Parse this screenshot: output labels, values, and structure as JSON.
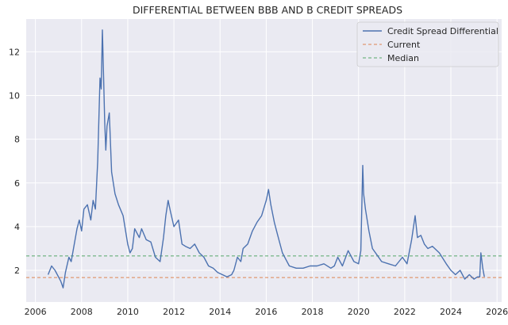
{
  "chart_data": {
    "type": "line",
    "title": "DIFFERENTIAL BETWEEN BBB AND B CREDIT SPREADS",
    "xlabel": "",
    "ylabel": "",
    "xlim": [
      2005.6,
      2026.2
    ],
    "ylim": [
      0.55,
      13.5
    ],
    "grid": true,
    "legend_position": "top-right",
    "x_ticks": [
      2006,
      2008,
      2010,
      2012,
      2014,
      2016,
      2018,
      2020,
      2022,
      2024,
      2026
    ],
    "y_ticks": [
      2,
      4,
      6,
      8,
      10,
      12
    ],
    "colors": {
      "plot_background": "#eaeaf2",
      "grid": "#ffffff",
      "series": "#4c72b0",
      "current": "#dd8452",
      "median": "#55a868"
    },
    "legend": [
      {
        "label": "Credit Spread Differential",
        "style": "solid",
        "color": "#4c72b0"
      },
      {
        "label": "Current",
        "style": "dashed",
        "color": "#dd8452"
      },
      {
        "label": "Median",
        "style": "dashed",
        "color": "#55a868"
      }
    ],
    "series": [
      {
        "name": "Credit Spread Differential",
        "x": [
          2006.55,
          2006.7,
          2006.85,
          2007.0,
          2007.1,
          2007.2,
          2007.3,
          2007.45,
          2007.55,
          2007.65,
          2007.8,
          2007.9,
          2008.0,
          2008.1,
          2008.25,
          2008.4,
          2008.5,
          2008.6,
          2008.7,
          2008.8,
          2008.85,
          2008.9,
          2008.95,
          2009.0,
          2009.05,
          2009.1,
          2009.2,
          2009.3,
          2009.45,
          2009.6,
          2009.8,
          2010.0,
          2010.1,
          2010.2,
          2010.3,
          2010.5,
          2010.6,
          2010.8,
          2011.0,
          2011.2,
          2011.4,
          2011.55,
          2011.65,
          2011.75,
          2011.85,
          2012.0,
          2012.2,
          2012.35,
          2012.5,
          2012.7,
          2012.9,
          2013.1,
          2013.3,
          2013.5,
          2013.7,
          2013.9,
          2014.1,
          2014.3,
          2014.5,
          2014.6,
          2014.75,
          2014.9,
          2015.0,
          2015.2,
          2015.4,
          2015.6,
          2015.8,
          2016.0,
          2016.1,
          2016.2,
          2016.35,
          2016.5,
          2016.7,
          2016.85,
          2017.0,
          2017.3,
          2017.6,
          2017.9,
          2018.2,
          2018.5,
          2018.8,
          2018.95,
          2019.1,
          2019.3,
          2019.55,
          2019.8,
          2020.0,
          2020.1,
          2020.18,
          2020.22,
          2020.3,
          2020.45,
          2020.6,
          2020.8,
          2021.0,
          2021.3,
          2021.6,
          2021.9,
          2022.1,
          2022.3,
          2022.45,
          2022.55,
          2022.7,
          2022.85,
          2023.0,
          2023.2,
          2023.5,
          2023.8,
          2024.0,
          2024.2,
          2024.4,
          2024.6,
          2024.8,
          2025.0,
          2025.15,
          2025.25,
          2025.3,
          2025.38,
          2025.45
        ],
        "values": [
          1.8,
          2.2,
          2.0,
          1.7,
          1.5,
          1.2,
          1.9,
          2.6,
          2.4,
          3.0,
          3.9,
          4.3,
          3.8,
          4.8,
          5.0,
          4.3,
          5.2,
          4.8,
          7.0,
          10.8,
          10.3,
          13.0,
          11.0,
          8.8,
          7.5,
          8.6,
          9.2,
          6.5,
          5.5,
          5.0,
          4.5,
          3.2,
          2.8,
          3.0,
          3.9,
          3.5,
          3.9,
          3.4,
          3.3,
          2.6,
          2.4,
          3.5,
          4.5,
          5.2,
          4.7,
          4.0,
          4.3,
          3.2,
          3.1,
          3.0,
          3.2,
          2.8,
          2.6,
          2.2,
          2.1,
          1.9,
          1.8,
          1.7,
          1.8,
          2.0,
          2.6,
          2.4,
          3.0,
          3.2,
          3.8,
          4.2,
          4.5,
          5.2,
          5.7,
          5.0,
          4.2,
          3.6,
          2.8,
          2.5,
          2.2,
          2.1,
          2.1,
          2.2,
          2.2,
          2.3,
          2.1,
          2.2,
          2.6,
          2.2,
          2.9,
          2.4,
          2.3,
          2.9,
          6.8,
          5.5,
          4.8,
          3.8,
          3.0,
          2.7,
          2.4,
          2.3,
          2.2,
          2.6,
          2.3,
          3.4,
          4.5,
          3.5,
          3.6,
          3.2,
          3.0,
          3.1,
          2.8,
          2.3,
          2.0,
          1.8,
          2.0,
          1.6,
          1.8,
          1.6,
          1.7,
          1.7,
          2.8,
          2.1,
          1.7
        ]
      }
    ],
    "reference_lines": [
      {
        "name": "Current",
        "value": 1.67
      },
      {
        "name": "Median",
        "value": 2.66
      }
    ]
  }
}
